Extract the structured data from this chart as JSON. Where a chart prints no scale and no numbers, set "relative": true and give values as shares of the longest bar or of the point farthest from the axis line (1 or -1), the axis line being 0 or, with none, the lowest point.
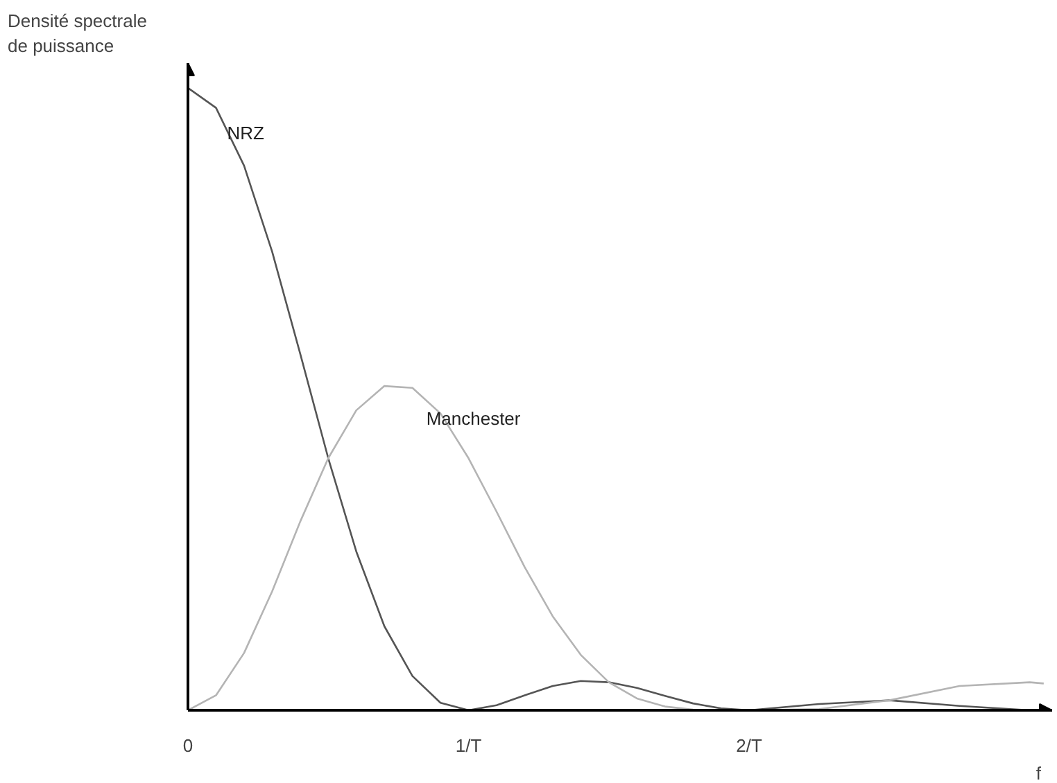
{
  "chart_data": {
    "type": "line",
    "relative": true,
    "ylabel": "Densité spectrale de puissance",
    "xlabel": "f",
    "xlim": [
      0,
      3.08
    ],
    "xticks": [
      0,
      {
        "value": 1,
        "label": "1/T"
      },
      {
        "value": 2,
        "label": "2/T"
      }
    ],
    "grid": false,
    "legend": false,
    "marker": "none",
    "line_style": "solid",
    "series": [
      {
        "name": "NRZ",
        "color": "#555555",
        "x": [
          0,
          0.1,
          0.2,
          0.3,
          0.4,
          0.5,
          0.6,
          0.7,
          0.8,
          0.9,
          1.0,
          1.1,
          1.2,
          1.3,
          1.4,
          1.5,
          1.6,
          1.7,
          1.8,
          1.9,
          2.0,
          2.25,
          2.5,
          2.75,
          3.0
        ],
        "values": [
          1,
          0.968,
          0.875,
          0.737,
          0.573,
          0.405,
          0.255,
          0.135,
          0.055,
          0.012,
          0,
          0.008,
          0.024,
          0.039,
          0.047,
          0.045,
          0.036,
          0.023,
          0.011,
          0.003,
          0,
          0.01,
          0.016,
          0.007,
          0
        ]
      },
      {
        "name": "Manchester",
        "color": "#b4b4b4",
        "x": [
          0,
          0.1,
          0.2,
          0.3,
          0.4,
          0.5,
          0.6,
          0.7,
          0.8,
          0.9,
          1.0,
          1.1,
          1.2,
          1.3,
          1.4,
          1.5,
          1.6,
          1.7,
          1.8,
          2.0,
          2.25,
          2.5,
          2.75,
          3.0,
          3.05
        ],
        "values": [
          0,
          0.024,
          0.092,
          0.191,
          0.303,
          0.405,
          0.482,
          0.521,
          0.518,
          0.477,
          0.405,
          0.319,
          0.23,
          0.151,
          0.089,
          0.045,
          0.019,
          0.006,
          0.001,
          0,
          0.002,
          0.016,
          0.039,
          0.045,
          0.043
        ]
      }
    ]
  }
}
